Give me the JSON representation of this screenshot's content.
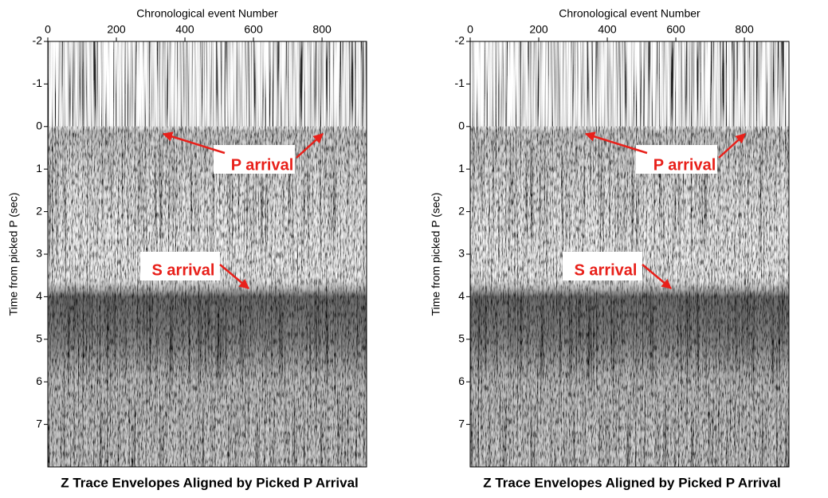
{
  "chart_data": [
    {
      "type": "image",
      "title": "Z Trace Envelopes Aligned by Picked P Arrival",
      "xlabel": "Chronological event Number",
      "ylabel": "Time from picked P (sec)",
      "xlim": [
        0,
        930
      ],
      "xticks": [
        0,
        200,
        400,
        600,
        800
      ],
      "ylim": [
        -2,
        8
      ],
      "yticks": [
        -2,
        -1,
        0,
        1,
        2,
        3,
        4,
        5,
        6,
        7
      ],
      "annotations": [
        "P arrival",
        "S arrival"
      ],
      "annotation_color": "#e8201a"
    },
    {
      "type": "image",
      "title": "Z Trace Envelopes Aligned by Picked P Arrival",
      "xlabel": "Chronological event Number",
      "ylabel": "Time from picked P (sec)",
      "xlim": [
        0,
        930
      ],
      "xticks": [
        0,
        200,
        400,
        600,
        800
      ],
      "ylim": [
        -2,
        8
      ],
      "yticks": [
        -2,
        -1,
        0,
        1,
        2,
        3,
        4,
        5,
        6,
        7
      ],
      "annotations": [
        "P arrival",
        "S arrival"
      ],
      "annotation_color": "#e8201a"
    }
  ]
}
